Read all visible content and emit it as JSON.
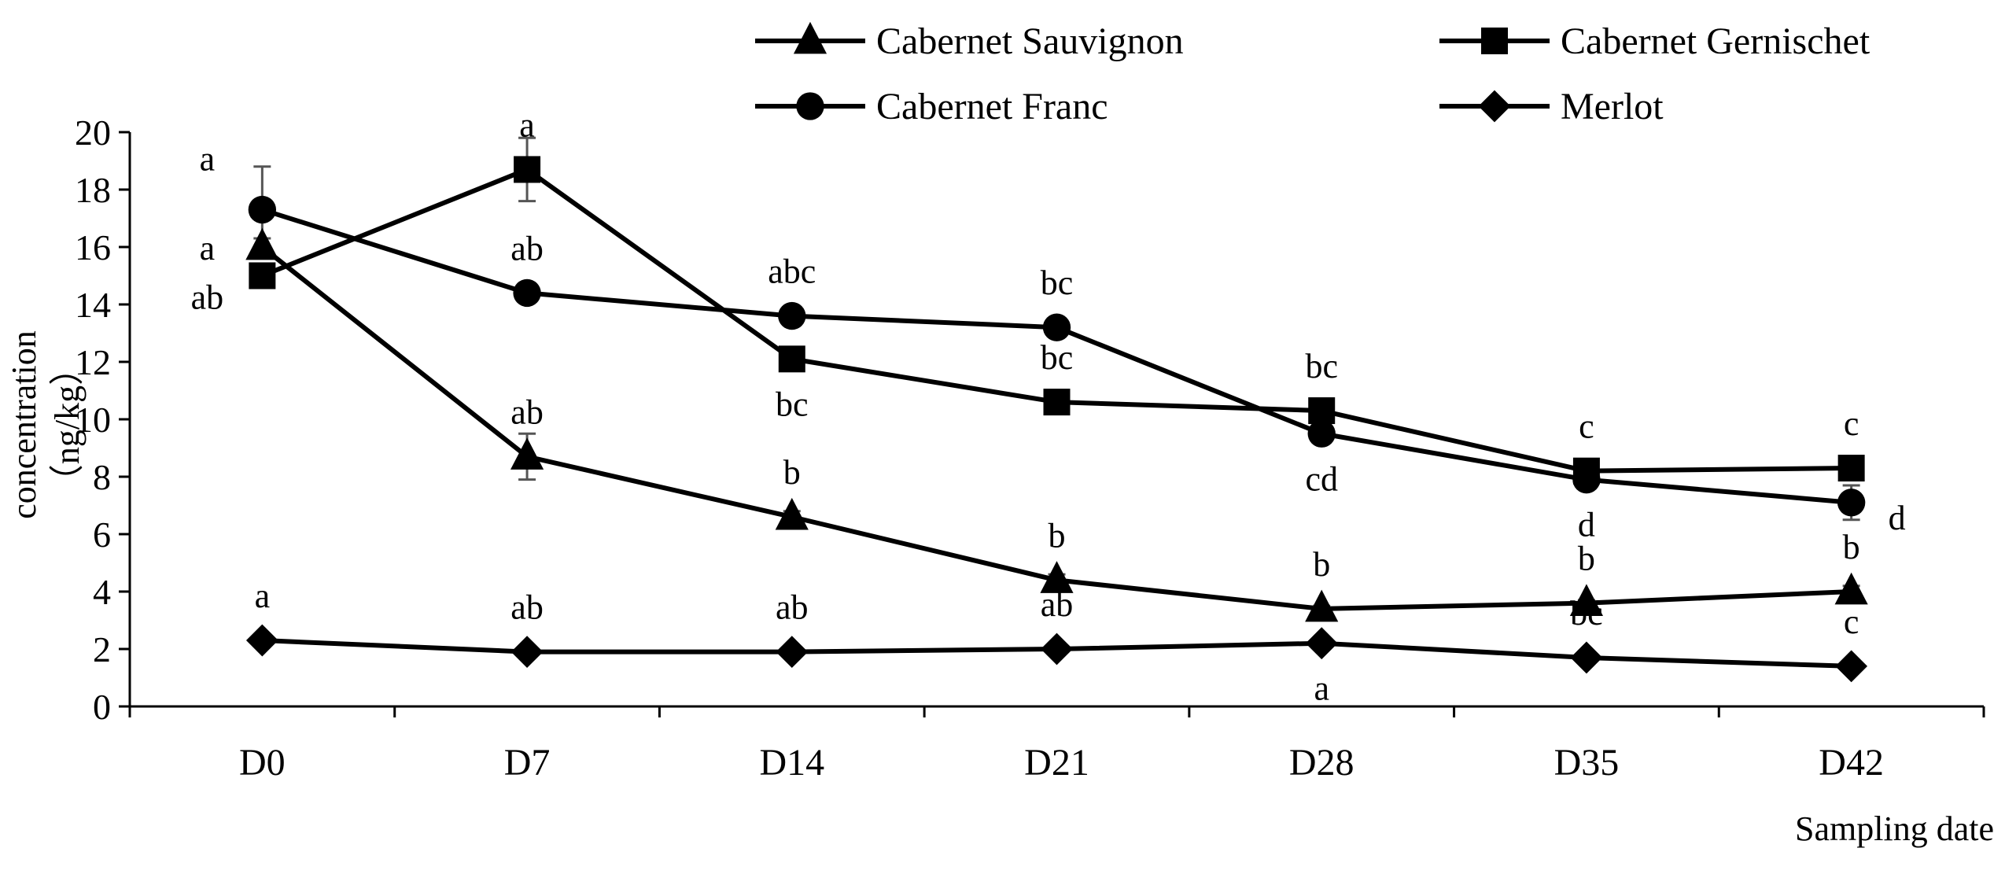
{
  "chart_data": {
    "type": "line",
    "title": "",
    "xlabel": "Sampling date",
    "ylabel": "concentration",
    "ylabel_unit": "（ng/kg）",
    "categories": [
      "D0",
      "D7",
      "D14",
      "D21",
      "D28",
      "D35",
      "D42"
    ],
    "ylim": [
      0,
      20
    ],
    "yticks": [
      0,
      2,
      4,
      6,
      8,
      10,
      12,
      14,
      16,
      18,
      20
    ],
    "grid": false,
    "legend_position": "top",
    "series": [
      {
        "name": "Cabernet Sauvignon",
        "marker": "triangle",
        "values": [
          16.0,
          8.7,
          6.6,
          4.4,
          3.4,
          3.6,
          4.0
        ],
        "errors": [
          0.3,
          0.8,
          0.2,
          0.2,
          0.1,
          0.1,
          0.2
        ],
        "letters": [
          "a",
          "ab",
          "b",
          "b",
          "b",
          "b",
          "b"
        ]
      },
      {
        "name": "Cabernet Gernischet",
        "marker": "square",
        "values": [
          15.0,
          18.7,
          12.1,
          10.6,
          10.3,
          8.2,
          8.3
        ],
        "errors": [
          0.3,
          1.1,
          0.2,
          0.2,
          0.2,
          0.2,
          0.2
        ],
        "letters": [
          "ab",
          "a",
          "bc",
          "bc",
          "bc",
          "c",
          "c"
        ]
      },
      {
        "name": "Cabernet Franc",
        "marker": "circle",
        "values": [
          17.3,
          14.4,
          13.6,
          13.2,
          9.5,
          7.9,
          7.1
        ],
        "errors": [
          1.5,
          0.3,
          0.2,
          0.2,
          0.2,
          0.2,
          0.6
        ],
        "letters": [
          "a",
          "ab",
          "abc",
          "bc",
          "cd",
          "d",
          "d"
        ]
      },
      {
        "name": "Merlot",
        "marker": "diamond",
        "values": [
          2.3,
          1.9,
          1.9,
          2.0,
          2.2,
          1.7,
          1.4
        ],
        "errors": [
          0.1,
          0.1,
          0.1,
          0.1,
          0.1,
          0.1,
          0.1
        ],
        "letters": [
          "a",
          "ab",
          "ab",
          "ab",
          "a",
          "bc",
          "c"
        ]
      }
    ]
  }
}
